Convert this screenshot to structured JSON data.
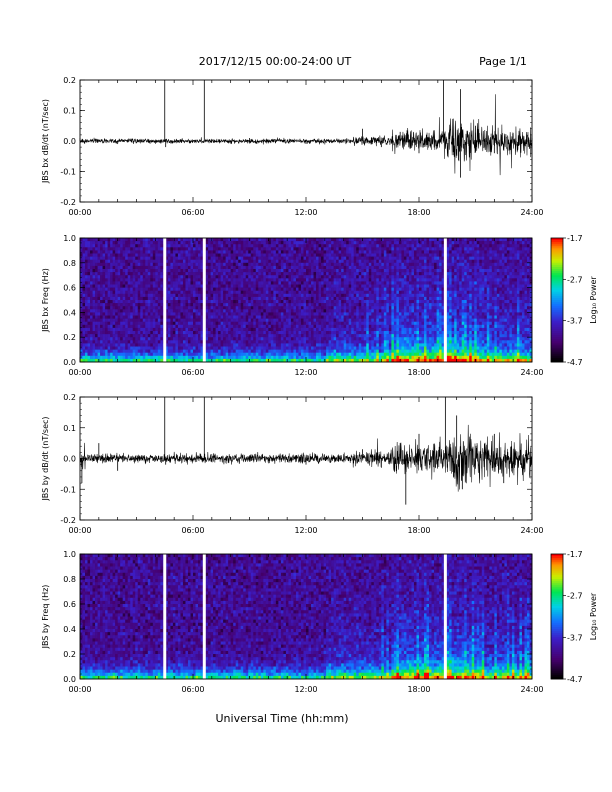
{
  "header": {
    "title": "2017/12/15  00:00-24:00 UT",
    "page": "Page 1/1"
  },
  "xlabel": "Universal Time (hh:mm)",
  "colorbar": {
    "label": "Log₁₀ Power",
    "ticks": [
      "-1.7",
      "-2.7",
      "-3.7",
      "-4.7"
    ],
    "range": [
      -4.7,
      -1.7
    ]
  },
  "chart_data": [
    {
      "type": "line",
      "ylabel": "JBS bx dB/dt (nT/sec)",
      "xlim": [
        0,
        24
      ],
      "ylim": [
        -0.2,
        0.2
      ],
      "x_ticks": [
        "00:00",
        "06:00",
        "12:00",
        "18:00",
        "24:00"
      ],
      "y_ticks": [
        "0.2",
        "0.1",
        "0.0",
        "-0.1",
        "-0.2"
      ],
      "series": [
        {
          "values": [
            [
              0,
              0.01
            ],
            [
              2,
              -0.01
            ],
            [
              4.5,
              0.2
            ],
            [
              4.55,
              -0.02
            ],
            [
              6.6,
              0.2
            ],
            [
              6.65,
              0.0
            ],
            [
              9,
              0.01
            ],
            [
              12,
              -0.01
            ],
            [
              15,
              0.04
            ],
            [
              16,
              -0.02
            ],
            [
              17,
              0.03
            ],
            [
              18,
              -0.04
            ],
            [
              19.3,
              0.2
            ],
            [
              19.4,
              0.0
            ],
            [
              20.2,
              0.17
            ],
            [
              20.2,
              -0.12
            ],
            [
              21,
              0.05
            ],
            [
              22,
              -0.04
            ],
            [
              24,
              0.01
            ]
          ]
        }
      ]
    },
    {
      "type": "heatmap",
      "ylabel": "JBS bx Freq (Hz)",
      "xlim": [
        0,
        24
      ],
      "ylim": [
        0.0,
        1.0
      ],
      "x_ticks": [
        "00:00",
        "06:00",
        "12:00",
        "18:00",
        "24:00"
      ],
      "y_ticks": [
        "1.0",
        "0.8",
        "0.6",
        "0.4",
        "0.2",
        "0.0"
      ],
      "zlim": [
        -4.7,
        -1.7
      ],
      "gaps_hours": [
        4.5,
        6.6,
        19.4
      ]
    },
    {
      "type": "line",
      "ylabel": "JBS by dB/dt (nT/sec)",
      "xlim": [
        0,
        24
      ],
      "ylim": [
        -0.2,
        0.2
      ],
      "x_ticks": [
        "00:00",
        "06:00",
        "12:00",
        "18:00",
        "24:00"
      ],
      "y_ticks": [
        "0.2",
        "0.1",
        "0.0",
        "-0.1",
        "-0.2"
      ],
      "series": [
        {
          "values": [
            [
              0,
              0.02
            ],
            [
              0.1,
              -0.08
            ],
            [
              1,
              0.05
            ],
            [
              2,
              -0.04
            ],
            [
              4.5,
              0.2
            ],
            [
              4.55,
              -0.02
            ],
            [
              6.6,
              0.2
            ],
            [
              6.65,
              0.0
            ],
            [
              9,
              0.01
            ],
            [
              12,
              -0.02
            ],
            [
              15,
              0.03
            ],
            [
              16,
              -0.03
            ],
            [
              17,
              0.05
            ],
            [
              17.3,
              -0.15
            ],
            [
              18,
              0.08
            ],
            [
              19.4,
              0.2
            ],
            [
              20,
              0.14
            ],
            [
              20.3,
              -0.1
            ],
            [
              22,
              0.08
            ],
            [
              22.5,
              -0.08
            ],
            [
              24,
              0.02
            ]
          ]
        }
      ]
    },
    {
      "type": "heatmap",
      "ylabel": "JBS by Freq (Hz)",
      "xlim": [
        0,
        24
      ],
      "ylim": [
        0.0,
        1.0
      ],
      "x_ticks": [
        "00:00",
        "06:00",
        "12:00",
        "18:00",
        "24:00"
      ],
      "y_ticks": [
        "1.0",
        "0.8",
        "0.6",
        "0.4",
        "0.2",
        "0.0"
      ],
      "zlim": [
        -4.7,
        -1.7
      ],
      "gaps_hours": [
        4.5,
        6.6,
        19.4
      ]
    }
  ]
}
